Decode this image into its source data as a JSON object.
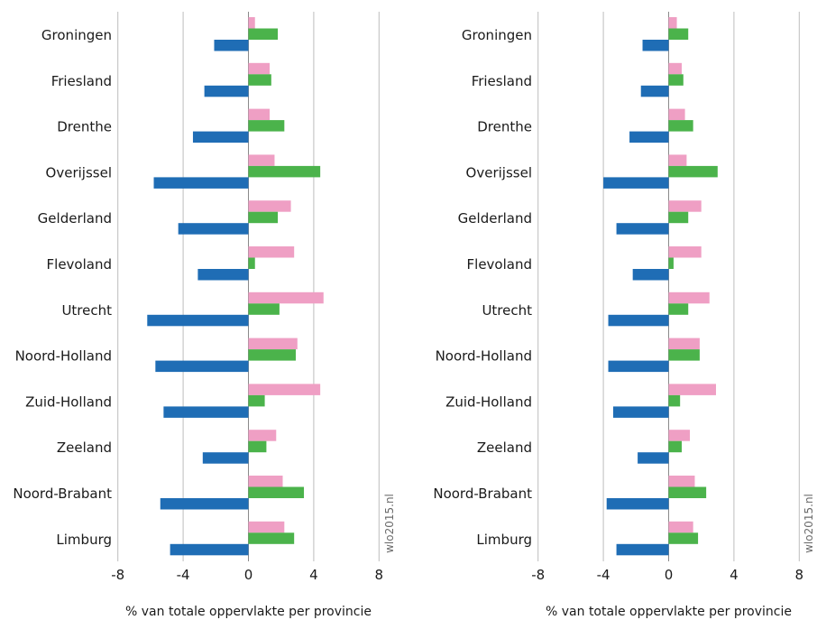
{
  "chart_data": [
    {
      "type": "bar",
      "orientation": "horizontal",
      "categories": [
        "Groningen",
        "Friesland",
        "Drenthe",
        "Overijssel",
        "Gelderland",
        "Flevoland",
        "Utrecht",
        "Noord-Holland",
        "Zuid-Holland",
        "Zeeland",
        "Noord-Brabant",
        "Limburg"
      ],
      "series": [
        {
          "color": "#ef9fc4",
          "values": [
            0.4,
            1.3,
            1.3,
            1.6,
            2.6,
            2.8,
            4.6,
            3.0,
            4.4,
            1.7,
            2.1,
            2.2
          ]
        },
        {
          "color": "#4bb34b",
          "values": [
            1.8,
            1.4,
            2.2,
            4.4,
            1.8,
            0.4,
            1.9,
            2.9,
            1.0,
            1.1,
            3.4,
            2.8
          ]
        },
        {
          "color": "#1f6db5",
          "values": [
            -2.1,
            -2.7,
            -3.4,
            -5.8,
            -4.3,
            -3.1,
            -6.2,
            -5.7,
            -5.2,
            -2.8,
            -5.4,
            -4.8
          ]
        }
      ],
      "xlabel": "% van totale oppervlakte per provincie",
      "xlim": [
        -8,
        8
      ],
      "xticks": [
        "-8",
        "-4",
        "0",
        "4",
        "8"
      ],
      "grid": true,
      "watermark": "wlo2015.nl"
    },
    {
      "type": "bar",
      "orientation": "horizontal",
      "categories": [
        "Groningen",
        "Friesland",
        "Drenthe",
        "Overijssel",
        "Gelderland",
        "Flevoland",
        "Utrecht",
        "Noord-Holland",
        "Zuid-Holland",
        "Zeeland",
        "Noord-Brabant",
        "Limburg"
      ],
      "series": [
        {
          "color": "#ef9fc4",
          "values": [
            0.5,
            0.8,
            1.0,
            1.1,
            2.0,
            2.0,
            2.5,
            1.9,
            2.9,
            1.3,
            1.6,
            1.5
          ]
        },
        {
          "color": "#4bb34b",
          "values": [
            1.2,
            0.9,
            1.5,
            3.0,
            1.2,
            0.3,
            1.2,
            1.9,
            0.7,
            0.8,
            2.3,
            1.8
          ]
        },
        {
          "color": "#1f6db5",
          "values": [
            -1.6,
            -1.7,
            -2.4,
            -4.0,
            -3.2,
            -2.2,
            -3.7,
            -3.7,
            -3.4,
            -1.9,
            -3.8,
            -3.2
          ]
        }
      ],
      "xlabel": "% van totale oppervlakte per provincie",
      "xlim": [
        -8,
        8
      ],
      "xticks": [
        "-8",
        "-4",
        "0",
        "4",
        "8"
      ],
      "grid": true,
      "watermark": "wlo2015.nl"
    }
  ]
}
